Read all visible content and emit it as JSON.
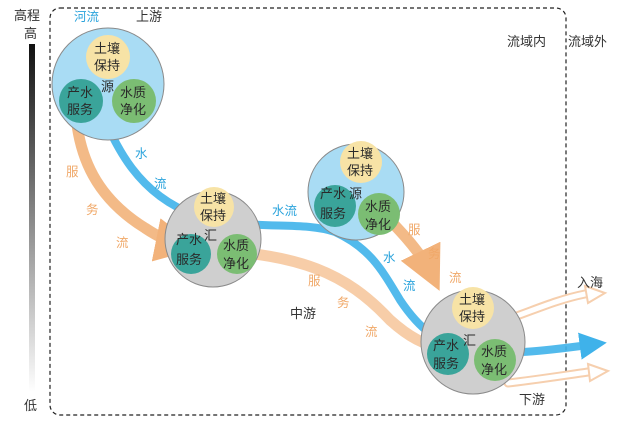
{
  "elevation": {
    "label": "高程",
    "high": "高",
    "low": "低"
  },
  "boundary": {
    "inside": "流域内",
    "outside": "流域外"
  },
  "regions": {
    "upstream": "上游",
    "midstream": "中游",
    "downstream": "下游",
    "to_sea": "入海"
  },
  "flows": {
    "river_label": "河流",
    "water_flow": "水流",
    "service_flow": "服务流"
  },
  "nodes": {
    "source": {
      "role": "源",
      "service_a": "土壤保持",
      "service_b": "产水服务",
      "service_c": "水质净化"
    },
    "sink": {
      "role": "汇",
      "service_a": "土壤保持",
      "service_b": "产水服务",
      "service_c": "水质净化"
    }
  },
  "colors": {
    "water": "#3fb2ea",
    "service_flow": "#f2b27a",
    "node_outer_source": "#a9dcf4",
    "node_outer_sink": "#cfcfcf",
    "soil": "#f7e3a6",
    "water_yield": "#3aa49a",
    "purification": "#7bbd73"
  }
}
